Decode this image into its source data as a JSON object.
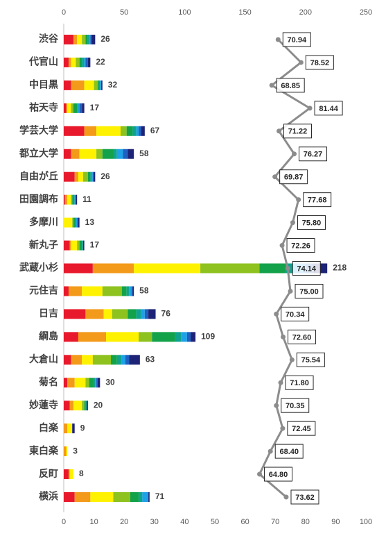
{
  "chart_data": {
    "type": "bar",
    "orientation": "horizontal",
    "stacked": true,
    "categories": [
      "渋谷",
      "代官山",
      "中目黒",
      "祐天寺",
      "学芸大学",
      "都立大学",
      "自由が丘",
      "田園調布",
      "多摩川",
      "新丸子",
      "武蔵小杉",
      "元住吉",
      "日吉",
      "綱島",
      "大倉山",
      "菊名",
      "妙蓮寺",
      "白楽",
      "東白楽",
      "反町",
      "横浜"
    ],
    "series": [
      {
        "color": "#e8192c",
        "values": [
          8,
          4,
          6,
          2,
          17,
          6,
          9,
          1,
          0,
          5,
          24,
          4,
          18,
          12,
          6,
          3,
          5,
          0,
          0,
          4,
          9
        ]
      },
      {
        "color": "#f39a1a",
        "values": [
          3,
          2,
          11,
          1,
          10,
          7,
          3,
          2,
          0,
          1,
          34,
          11,
          15,
          23,
          9,
          6,
          3,
          3,
          2,
          1,
          13
        ]
      },
      {
        "color": "#fff200",
        "values": [
          4,
          4,
          8,
          3,
          20,
          14,
          4,
          3,
          7,
          5,
          55,
          17,
          7,
          27,
          9,
          9,
          7,
          4,
          1,
          3,
          19
        ]
      },
      {
        "color": "#8dc21f",
        "values": [
          3,
          3,
          3,
          2,
          5,
          5,
          4,
          1,
          1,
          2,
          49,
          16,
          13,
          11,
          15,
          3,
          2,
          0,
          0,
          0,
          14
        ]
      },
      {
        "color": "#13a24a",
        "values": [
          2,
          2,
          1,
          3,
          5,
          9,
          2,
          1,
          2,
          2,
          22,
          4,
          7,
          19,
          5,
          4,
          1,
          0,
          0,
          0,
          7
        ]
      },
      {
        "color": "#0fa38f",
        "values": [
          1,
          2,
          1,
          1,
          3,
          3,
          1,
          1,
          0,
          1,
          6,
          2,
          4,
          5,
          4,
          1,
          1,
          0,
          0,
          0,
          3
        ]
      },
      {
        "color": "#1ea1e6",
        "values": [
          1,
          1,
          1,
          1,
          2,
          5,
          1,
          1,
          1,
          0,
          10,
          2,
          3,
          5,
          3,
          1,
          0,
          0,
          0,
          0,
          5
        ]
      },
      {
        "color": "#1f5fbf",
        "values": [
          1,
          2,
          0,
          2,
          2,
          4,
          1,
          0,
          1,
          0,
          6,
          1,
          3,
          3,
          3,
          1,
          0,
          0,
          0,
          0,
          0
        ]
      },
      {
        "color": "#1d2376",
        "values": [
          3,
          2,
          1,
          2,
          3,
          5,
          1,
          1,
          1,
          1,
          12,
          1,
          6,
          4,
          9,
          2,
          1,
          2,
          0,
          0,
          1
        ]
      }
    ],
    "totals": [
      26,
      22,
      32,
      17,
      67,
      58,
      26,
      11,
      13,
      17,
      218,
      58,
      76,
      109,
      63,
      30,
      20,
      9,
      3,
      8,
      71
    ],
    "xlim": [
      0,
      250
    ],
    "xticks": [
      0,
      50,
      100,
      150,
      200,
      250
    ],
    "line": {
      "color": "#8c8c8c",
      "values": [
        70.94,
        78.52,
        68.85,
        81.44,
        71.22,
        76.27,
        69.87,
        77.68,
        75.8,
        72.26,
        74.14,
        75.0,
        70.34,
        72.6,
        75.54,
        71.8,
        70.35,
        72.45,
        68.4,
        64.8,
        73.62
      ],
      "value_labels": [
        "70.94",
        "78.52",
        "68.85",
        "81.44",
        "71.22",
        "76.27",
        "69.87",
        "77.68",
        "75.80",
        "72.26",
        "74.14",
        "75.00",
        "70.34",
        "72.60",
        "75.54",
        "71.80",
        "70.35",
        "72.45",
        "68.40",
        "64.80",
        "73.62"
      ],
      "x2lim": [
        0,
        100
      ],
      "x2ticks": [
        0,
        10,
        20,
        30,
        40,
        50,
        60,
        70,
        80,
        90,
        100
      ]
    }
  }
}
